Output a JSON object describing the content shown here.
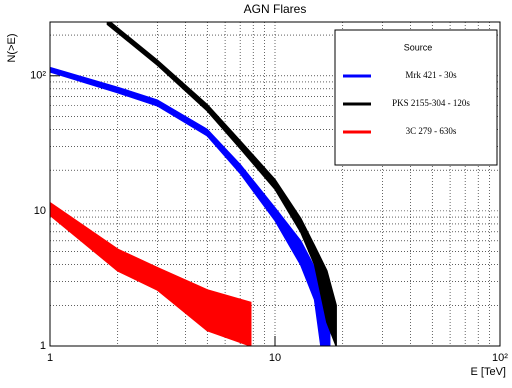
{
  "chart_data": {
    "type": "band",
    "title": "AGN Flares",
    "x_label": "E [TeV]",
    "y_label": "N(>E)",
    "log_x": true,
    "log_y": true,
    "grid": true,
    "xlim": [
      1,
      100
    ],
    "ylim": [
      1,
      250
    ],
    "xticks": [
      1,
      10,
      {
        "value": 100,
        "label": "10²"
      }
    ],
    "yticks": [
      1,
      10,
      {
        "value": 100,
        "label": "10²"
      }
    ],
    "xminorticks": [
      2,
      3,
      4,
      5,
      6,
      7,
      8,
      9,
      20,
      30,
      40,
      50,
      60,
      70,
      80,
      90
    ],
    "yminorticks": [
      2,
      3,
      4,
      5,
      6,
      7,
      8,
      9,
      20,
      30,
      40,
      50,
      60,
      70,
      80,
      90,
      200
    ],
    "legend_title": "Source",
    "legend_position": "upper right",
    "series": [
      {
        "name": "Mrk 421 - 30s",
        "color": "#0000ff",
        "x": [
          1,
          2,
          3,
          5,
          7,
          10,
          13,
          15,
          16,
          17.5
        ],
        "upper": [
          115,
          82,
          66,
          40,
          22,
          10.5,
          6,
          3.8,
          3,
          2
        ],
        "lower": [
          107,
          75,
          60,
          36,
          19,
          8.5,
          4,
          2.2,
          1,
          1
        ]
      },
      {
        "name": "PKS 2155-304 - 120s",
        "color": "#000000",
        "x": [
          1.8,
          3,
          5,
          7,
          10,
          13,
          15,
          17,
          18.7
        ],
        "upper": [
          260,
          130,
          61,
          33,
          17,
          8.8,
          5.5,
          3.6,
          2
        ],
        "lower": [
          240,
          120,
          55,
          29,
          14.5,
          7,
          4,
          1.5,
          1
        ]
      },
      {
        "name": "3C 279 - 630s",
        "color": "#ff0000",
        "x": [
          1,
          2,
          3,
          5,
          7.8
        ],
        "upper": [
          11.5,
          5.2,
          3.8,
          2.6,
          2.1
        ],
        "lower": [
          9.3,
          3.6,
          2.6,
          1.3,
          1
        ]
      }
    ]
  }
}
